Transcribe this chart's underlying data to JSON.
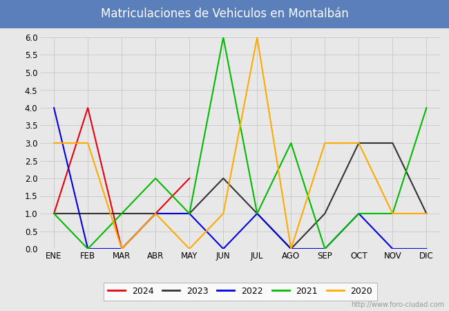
{
  "title": "Matriculaciones de Vehiculos en Montalbán",
  "title_bg_color": "#5b7fbb",
  "title_text_color": "#ffffff",
  "months": [
    "ENE",
    "FEB",
    "MAR",
    "ABR",
    "MAY",
    "JUN",
    "JUL",
    "AGO",
    "SEP",
    "OCT",
    "NOV",
    "DIC"
  ],
  "series": {
    "2024": {
      "color": "#e8000d",
      "data": [
        1,
        4,
        0,
        1,
        2,
        null,
        null,
        null,
        null,
        null,
        null,
        null
      ]
    },
    "2023": {
      "color": "#333333",
      "data": [
        1,
        1,
        1,
        1,
        1,
        2,
        1,
        0,
        1,
        3,
        3,
        1
      ]
    },
    "2022": {
      "color": "#0000dd",
      "data": [
        4,
        0,
        0,
        1,
        1,
        0,
        1,
        0,
        0,
        1,
        0,
        0
      ]
    },
    "2021": {
      "color": "#00bb00",
      "data": [
        1,
        0,
        1,
        2,
        1,
        6,
        1,
        3,
        0,
        1,
        1,
        4
      ]
    },
    "2020": {
      "color": "#ffaa00",
      "data": [
        3,
        3,
        0,
        1,
        0,
        1,
        6,
        0,
        3,
        3,
        1,
        1
      ]
    }
  },
  "ylim": [
    0.0,
    6.0
  ],
  "yticks": [
    0.0,
    0.5,
    1.0,
    1.5,
    2.0,
    2.5,
    3.0,
    3.5,
    4.0,
    4.5,
    5.0,
    5.5,
    6.0
  ],
  "grid_color": "#cccccc",
  "bg_color": "#e8e8e8",
  "plot_bg_color": "#e8e8e8",
  "watermark": "http://www.foro-ciudad.com",
  "legend_order": [
    "2024",
    "2023",
    "2022",
    "2021",
    "2020"
  ]
}
